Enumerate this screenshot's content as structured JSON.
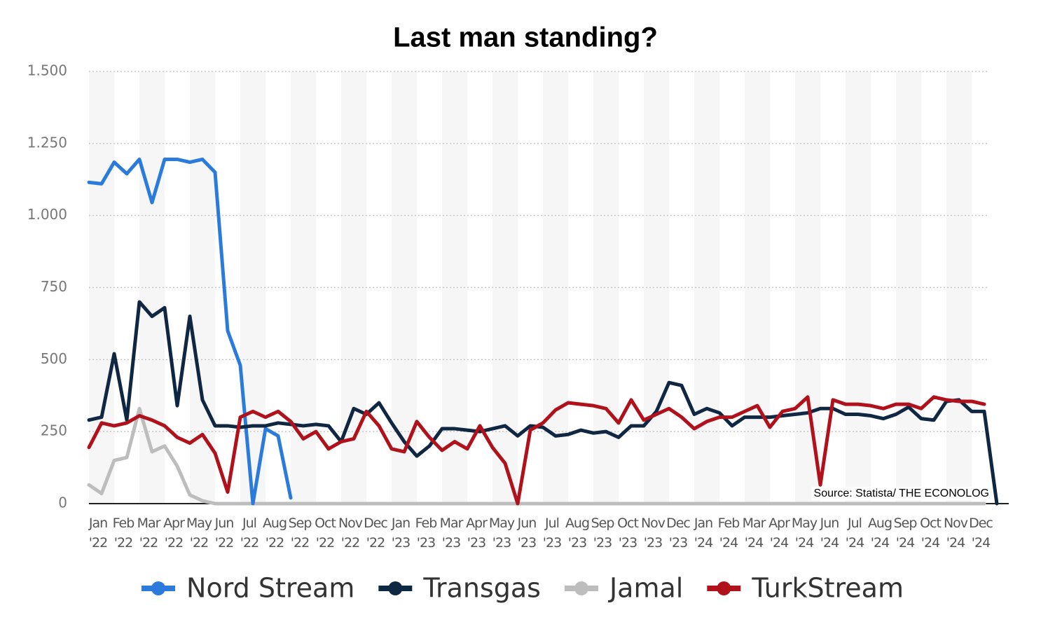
{
  "chart_data": {
    "type": "line",
    "title": "Last man standing?",
    "annotation": "Source: Statista/ THE ECONOLOG",
    "categories": [
      "Jan '22",
      null,
      "Feb '22",
      null,
      "Mar '22",
      null,
      "Apr '22",
      null,
      "May '22",
      null,
      "Jun '22",
      null,
      "Jul '22",
      null,
      "Aug '22",
      null,
      "Sep '22",
      null,
      "Oct '22",
      null,
      "Nov '22",
      null,
      "Dec '22",
      null,
      "Jan '23",
      null,
      "Feb '23",
      null,
      "Mar '23",
      null,
      "Apr '23",
      null,
      "May '23",
      null,
      "Jun '23",
      null,
      "Jul '23",
      null,
      "Aug '23",
      null,
      "Sep '23",
      null,
      "Oct '23",
      null,
      "Nov '23",
      null,
      "Dec '23",
      null,
      "Jan '24",
      null,
      "Feb '24",
      null,
      "Mar '24",
      null,
      "Apr '24",
      null,
      "May '24",
      null,
      "Jun '24",
      null,
      "Jul '24",
      null,
      "Aug '24",
      null,
      "Sep '24",
      null,
      "Oct '24",
      null,
      "Nov '24",
      null,
      "Dec '24",
      null,
      null
    ],
    "series": [
      {
        "name": "Nord Stream",
        "color": "#2b7bdc",
        "values": [
          1115,
          1110,
          1185,
          1145,
          1195,
          1045,
          1195,
          1195,
          1185,
          1195,
          1150,
          600,
          480,
          0,
          260,
          235,
          20,
          null,
          null,
          null,
          null,
          null,
          null,
          null,
          null,
          null,
          null,
          null,
          null,
          null,
          null,
          null,
          null,
          null,
          null,
          null,
          null,
          null,
          null,
          null,
          null,
          null,
          null,
          null,
          null,
          null,
          null,
          null,
          null,
          null,
          null,
          null,
          null,
          null,
          null,
          null,
          null,
          null,
          null,
          null,
          null,
          null,
          null,
          null,
          null,
          null,
          null,
          null,
          null,
          null,
          null,
          null,
          null
        ]
      },
      {
        "name": "Transgas",
        "color": "#0f2742",
        "values": [
          290,
          300,
          520,
          290,
          700,
          650,
          680,
          340,
          650,
          360,
          270,
          270,
          265,
          270,
          270,
          280,
          275,
          270,
          275,
          270,
          215,
          330,
          310,
          350,
          280,
          215,
          165,
          200,
          260,
          260,
          255,
          250,
          260,
          270,
          235,
          270,
          265,
          235,
          240,
          255,
          245,
          250,
          230,
          270,
          270,
          320,
          420,
          410,
          310,
          330,
          315,
          270,
          300,
          300,
          300,
          305,
          310,
          315,
          330,
          330,
          310,
          310,
          305,
          295,
          310,
          335,
          295,
          290,
          355,
          360,
          320,
          320,
          0
        ]
      },
      {
        "name": "Jamal",
        "color": "#bdbdbd",
        "values": [
          65,
          35,
          150,
          160,
          330,
          180,
          200,
          130,
          30,
          10,
          0,
          0,
          0,
          0,
          0,
          0,
          0,
          0,
          0,
          0,
          0,
          0,
          0,
          0,
          0,
          0,
          0,
          0,
          0,
          0,
          0,
          0,
          0,
          0,
          0,
          0,
          0,
          0,
          0,
          0,
          0,
          0,
          0,
          0,
          0,
          0,
          0,
          0,
          0,
          0,
          0,
          0,
          0,
          0,
          0,
          0,
          0,
          0,
          0,
          0,
          0,
          0,
          0,
          0,
          0,
          0,
          0,
          0,
          0,
          0,
          0,
          0,
          null
        ]
      },
      {
        "name": "TurkStream",
        "color": "#b0111a",
        "values": [
          195,
          280,
          270,
          280,
          305,
          290,
          270,
          230,
          210,
          240,
          175,
          40,
          300,
          320,
          300,
          320,
          285,
          225,
          250,
          190,
          215,
          225,
          320,
          270,
          190,
          180,
          285,
          230,
          185,
          215,
          190,
          270,
          195,
          140,
          0,
          255,
          280,
          325,
          350,
          345,
          340,
          330,
          280,
          360,
          290,
          310,
          330,
          300,
          260,
          285,
          300,
          300,
          320,
          340,
          265,
          320,
          330,
          370,
          65,
          360,
          345,
          345,
          340,
          330,
          345,
          345,
          330,
          370,
          360,
          355,
          355,
          345,
          null
        ]
      }
    ],
    "ylim": [
      0,
      1500
    ],
    "yticks": [
      0,
      250,
      500,
      750,
      {
        "value": 1000,
        "label": "1.000"
      },
      {
        "value": 1250,
        "label": "1.250"
      },
      {
        "value": 1500,
        "label": "1.500"
      }
    ],
    "grid": true
  }
}
